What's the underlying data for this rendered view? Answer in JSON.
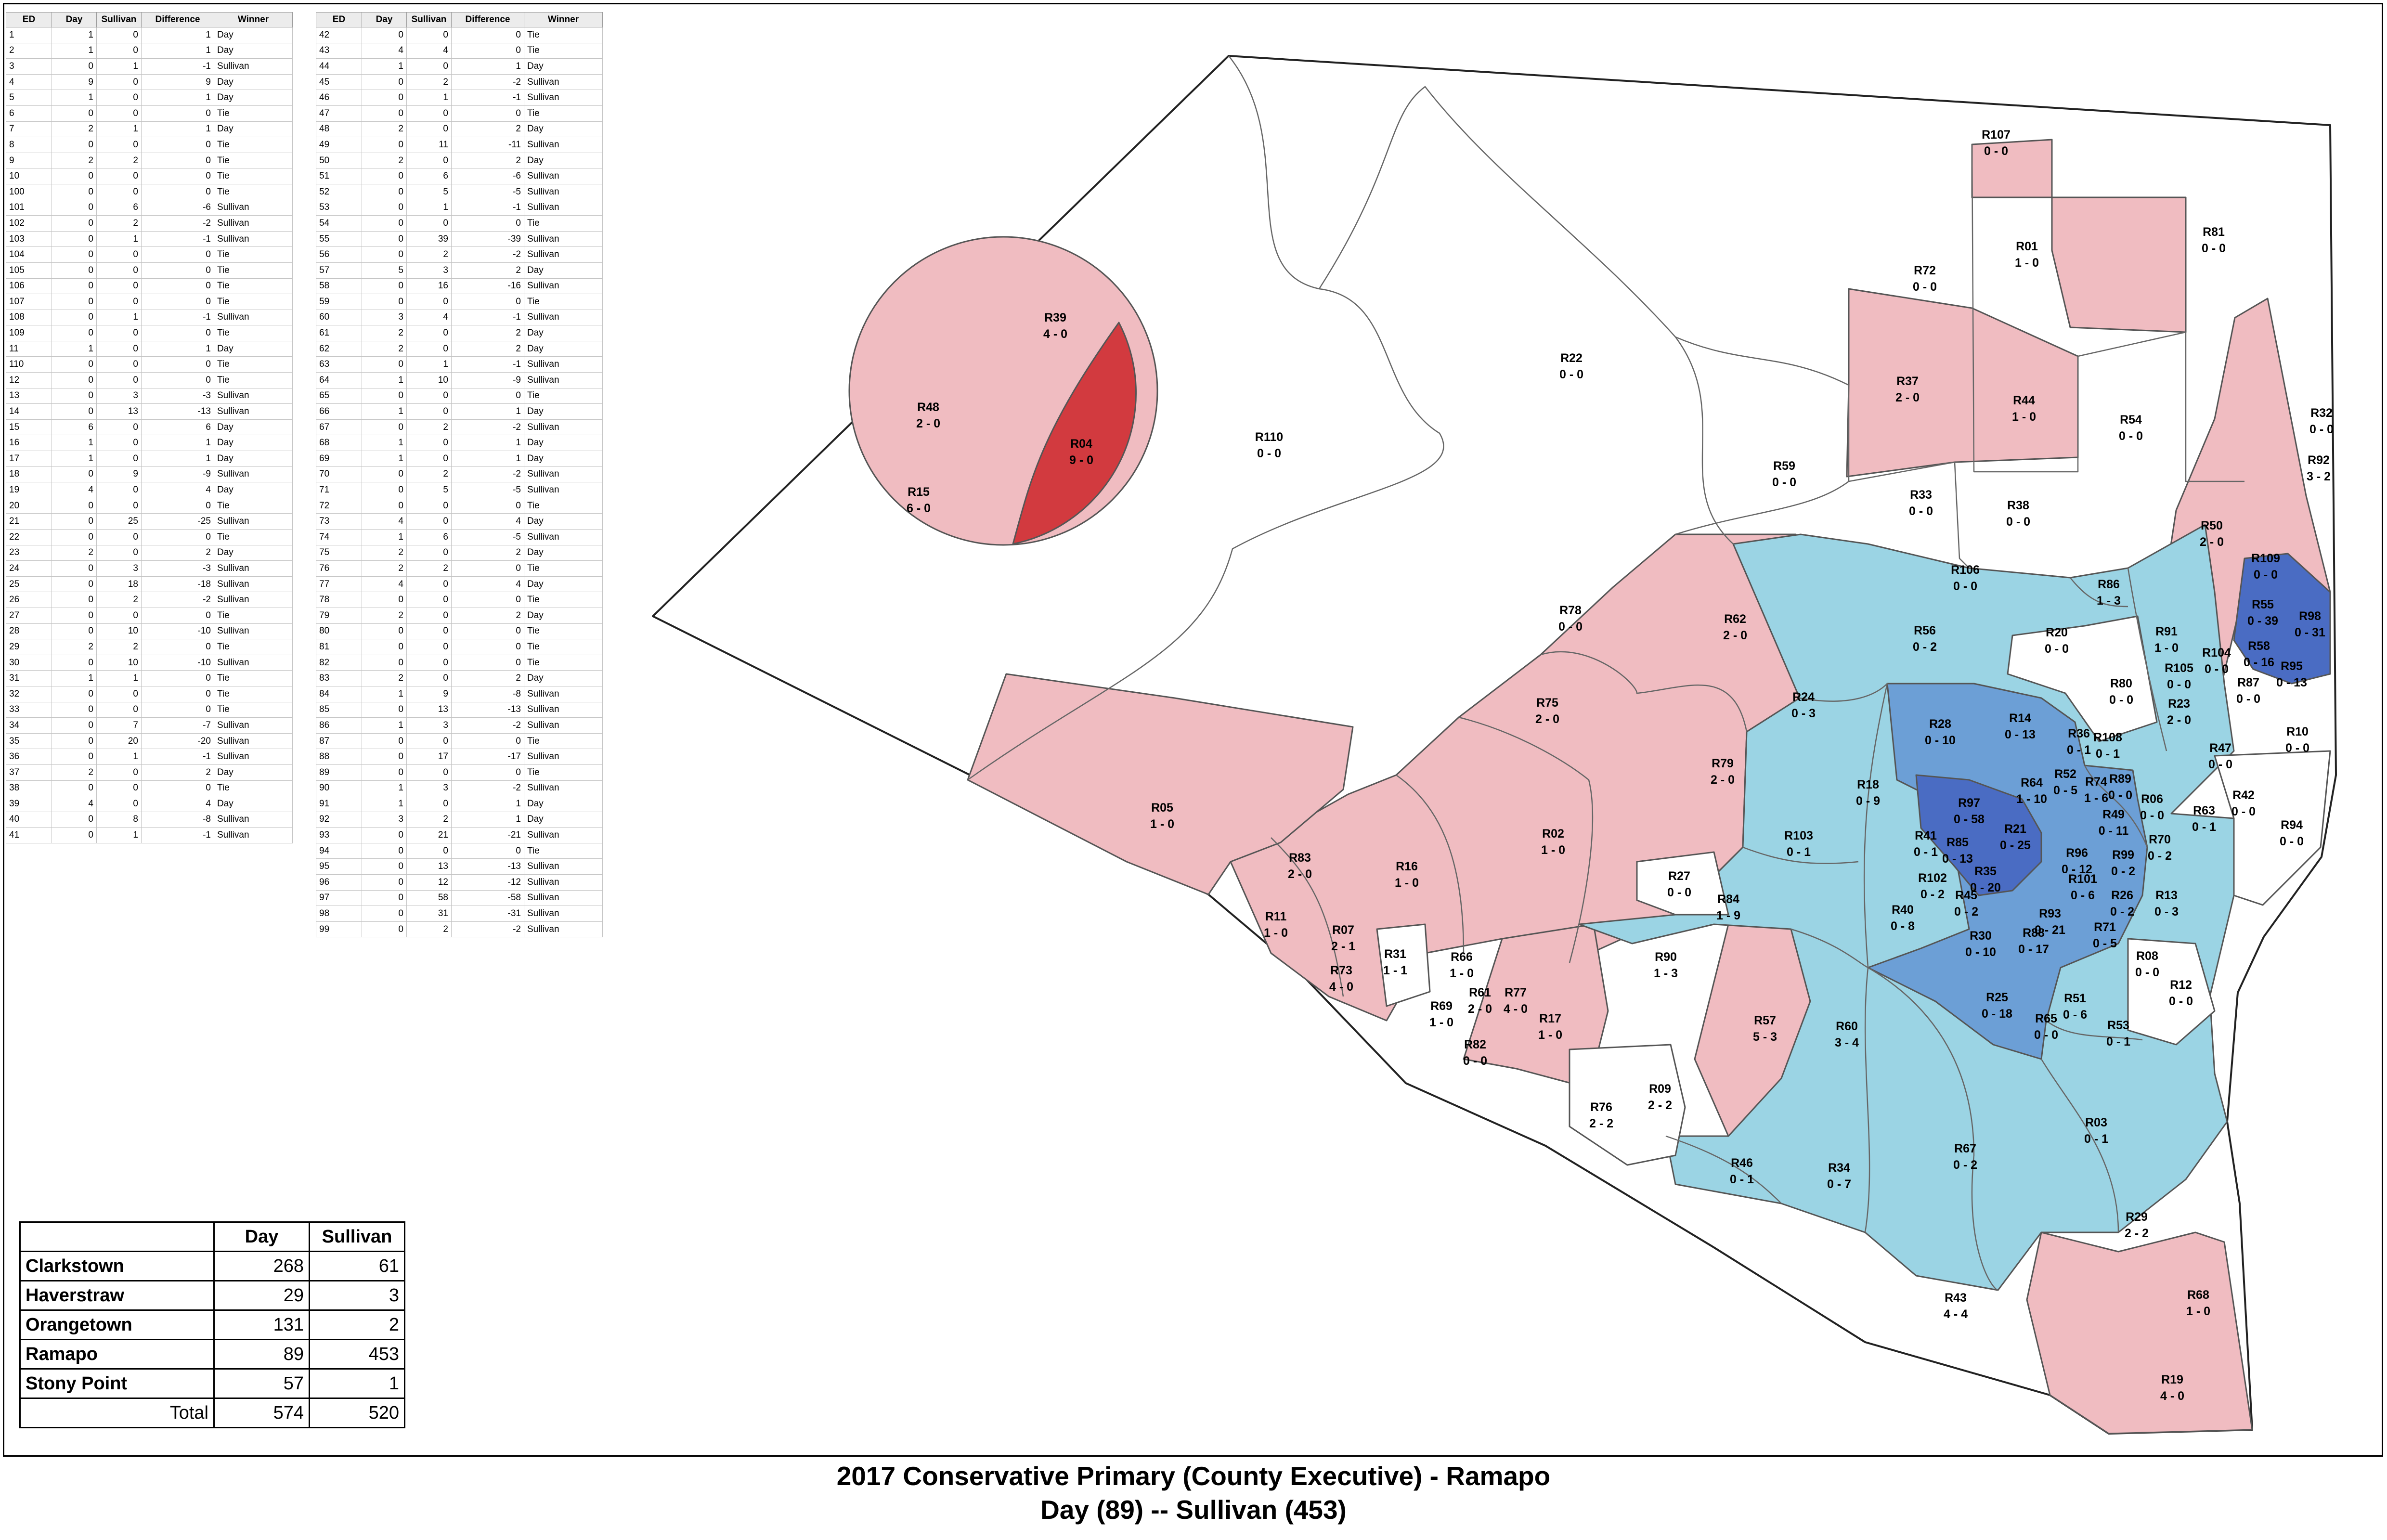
{
  "colors": {
    "tie": "#ffffff",
    "day_light": "#f0bcc1",
    "day_strong": "#d23a3f",
    "sul_light": "#9bd4e4",
    "sul_mid": "#6c9fd6",
    "sul_strong": "#4a6cc3"
  },
  "ed_columns": [
    "ED",
    "Day",
    "Sullivan",
    "Difference",
    "Winner"
  ],
  "ed_rows_left": [
    [
      "1",
      "1",
      "0",
      "1",
      "Day"
    ],
    [
      "2",
      "1",
      "0",
      "1",
      "Day"
    ],
    [
      "3",
      "0",
      "1",
      "-1",
      "Sullivan"
    ],
    [
      "4",
      "9",
      "0",
      "9",
      "Day"
    ],
    [
      "5",
      "1",
      "0",
      "1",
      "Day"
    ],
    [
      "6",
      "0",
      "0",
      "0",
      "Tie"
    ],
    [
      "7",
      "2",
      "1",
      "1",
      "Day"
    ],
    [
      "8",
      "0",
      "0",
      "0",
      "Tie"
    ],
    [
      "9",
      "2",
      "2",
      "0",
      "Tie"
    ],
    [
      "10",
      "0",
      "0",
      "0",
      "Tie"
    ],
    [
      "100",
      "0",
      "0",
      "0",
      "Tie"
    ],
    [
      "101",
      "0",
      "6",
      "-6",
      "Sullivan"
    ],
    [
      "102",
      "0",
      "2",
      "-2",
      "Sullivan"
    ],
    [
      "103",
      "0",
      "1",
      "-1",
      "Sullivan"
    ],
    [
      "104",
      "0",
      "0",
      "0",
      "Tie"
    ],
    [
      "105",
      "0",
      "0",
      "0",
      "Tie"
    ],
    [
      "106",
      "0",
      "0",
      "0",
      "Tie"
    ],
    [
      "107",
      "0",
      "0",
      "0",
      "Tie"
    ],
    [
      "108",
      "0",
      "1",
      "-1",
      "Sullivan"
    ],
    [
      "109",
      "0",
      "0",
      "0",
      "Tie"
    ],
    [
      "11",
      "1",
      "0",
      "1",
      "Day"
    ],
    [
      "110",
      "0",
      "0",
      "0",
      "Tie"
    ],
    [
      "12",
      "0",
      "0",
      "0",
      "Tie"
    ],
    [
      "13",
      "0",
      "3",
      "-3",
      "Sullivan"
    ],
    [
      "14",
      "0",
      "13",
      "-13",
      "Sullivan"
    ],
    [
      "15",
      "6",
      "0",
      "6",
      "Day"
    ],
    [
      "16",
      "1",
      "0",
      "1",
      "Day"
    ],
    [
      "17",
      "1",
      "0",
      "1",
      "Day"
    ],
    [
      "18",
      "0",
      "9",
      "-9",
      "Sullivan"
    ],
    [
      "19",
      "4",
      "0",
      "4",
      "Day"
    ],
    [
      "20",
      "0",
      "0",
      "0",
      "Tie"
    ],
    [
      "21",
      "0",
      "25",
      "-25",
      "Sullivan"
    ],
    [
      "22",
      "0",
      "0",
      "0",
      "Tie"
    ],
    [
      "23",
      "2",
      "0",
      "2",
      "Day"
    ],
    [
      "24",
      "0",
      "3",
      "-3",
      "Sullivan"
    ],
    [
      "25",
      "0",
      "18",
      "-18",
      "Sullivan"
    ],
    [
      "26",
      "0",
      "2",
      "-2",
      "Sullivan"
    ],
    [
      "27",
      "0",
      "0",
      "0",
      "Tie"
    ],
    [
      "28",
      "0",
      "10",
      "-10",
      "Sullivan"
    ],
    [
      "29",
      "2",
      "2",
      "0",
      "Tie"
    ],
    [
      "30",
      "0",
      "10",
      "-10",
      "Sullivan"
    ],
    [
      "31",
      "1",
      "1",
      "0",
      "Tie"
    ],
    [
      "32",
      "0",
      "0",
      "0",
      "Tie"
    ],
    [
      "33",
      "0",
      "0",
      "0",
      "Tie"
    ],
    [
      "34",
      "0",
      "7",
      "-7",
      "Sullivan"
    ],
    [
      "35",
      "0",
      "20",
      "-20",
      "Sullivan"
    ],
    [
      "36",
      "0",
      "1",
      "-1",
      "Sullivan"
    ],
    [
      "37",
      "2",
      "0",
      "2",
      "Day"
    ],
    [
      "38",
      "0",
      "0",
      "0",
      "Tie"
    ],
    [
      "39",
      "4",
      "0",
      "4",
      "Day"
    ],
    [
      "40",
      "0",
      "8",
      "-8",
      "Sullivan"
    ],
    [
      "41",
      "0",
      "1",
      "-1",
      "Sullivan"
    ]
  ],
  "ed_rows_right": [
    [
      "42",
      "0",
      "0",
      "0",
      "Tie"
    ],
    [
      "43",
      "4",
      "4",
      "0",
      "Tie"
    ],
    [
      "44",
      "1",
      "0",
      "1",
      "Day"
    ],
    [
      "45",
      "0",
      "2",
      "-2",
      "Sullivan"
    ],
    [
      "46",
      "0",
      "1",
      "-1",
      "Sullivan"
    ],
    [
      "47",
      "0",
      "0",
      "0",
      "Tie"
    ],
    [
      "48",
      "2",
      "0",
      "2",
      "Day"
    ],
    [
      "49",
      "0",
      "11",
      "-11",
      "Sullivan"
    ],
    [
      "50",
      "2",
      "0",
      "2",
      "Day"
    ],
    [
      "51",
      "0",
      "6",
      "-6",
      "Sullivan"
    ],
    [
      "52",
      "0",
      "5",
      "-5",
      "Sullivan"
    ],
    [
      "53",
      "0",
      "1",
      "-1",
      "Sullivan"
    ],
    [
      "54",
      "0",
      "0",
      "0",
      "Tie"
    ],
    [
      "55",
      "0",
      "39",
      "-39",
      "Sullivan"
    ],
    [
      "56",
      "0",
      "2",
      "-2",
      "Sullivan"
    ],
    [
      "57",
      "5",
      "3",
      "2",
      "Day"
    ],
    [
      "58",
      "0",
      "16",
      "-16",
      "Sullivan"
    ],
    [
      "59",
      "0",
      "0",
      "0",
      "Tie"
    ],
    [
      "60",
      "3",
      "4",
      "-1",
      "Sullivan"
    ],
    [
      "61",
      "2",
      "0",
      "2",
      "Day"
    ],
    [
      "62",
      "2",
      "0",
      "2",
      "Day"
    ],
    [
      "63",
      "0",
      "1",
      "-1",
      "Sullivan"
    ],
    [
      "64",
      "1",
      "10",
      "-9",
      "Sullivan"
    ],
    [
      "65",
      "0",
      "0",
      "0",
      "Tie"
    ],
    [
      "66",
      "1",
      "0",
      "1",
      "Day"
    ],
    [
      "67",
      "0",
      "2",
      "-2",
      "Sullivan"
    ],
    [
      "68",
      "1",
      "0",
      "1",
      "Day"
    ],
    [
      "69",
      "1",
      "0",
      "1",
      "Day"
    ],
    [
      "70",
      "0",
      "2",
      "-2",
      "Sullivan"
    ],
    [
      "71",
      "0",
      "5",
      "-5",
      "Sullivan"
    ],
    [
      "72",
      "0",
      "0",
      "0",
      "Tie"
    ],
    [
      "73",
      "4",
      "0",
      "4",
      "Day"
    ],
    [
      "74",
      "1",
      "6",
      "-5",
      "Sullivan"
    ],
    [
      "75",
      "2",
      "0",
      "2",
      "Day"
    ],
    [
      "76",
      "2",
      "2",
      "0",
      "Tie"
    ],
    [
      "77",
      "4",
      "0",
      "4",
      "Day"
    ],
    [
      "78",
      "0",
      "0",
      "0",
      "Tie"
    ],
    [
      "79",
      "2",
      "0",
      "2",
      "Day"
    ],
    [
      "80",
      "0",
      "0",
      "0",
      "Tie"
    ],
    [
      "81",
      "0",
      "0",
      "0",
      "Tie"
    ],
    [
      "82",
      "0",
      "0",
      "0",
      "Tie"
    ],
    [
      "83",
      "2",
      "0",
      "2",
      "Day"
    ],
    [
      "84",
      "1",
      "9",
      "-8",
      "Sullivan"
    ],
    [
      "85",
      "0",
      "13",
      "-13",
      "Sullivan"
    ],
    [
      "86",
      "1",
      "3",
      "-2",
      "Sullivan"
    ],
    [
      "87",
      "0",
      "0",
      "0",
      "Tie"
    ],
    [
      "88",
      "0",
      "17",
      "-17",
      "Sullivan"
    ],
    [
      "89",
      "0",
      "0",
      "0",
      "Tie"
    ],
    [
      "90",
      "1",
      "3",
      "-2",
      "Sullivan"
    ],
    [
      "91",
      "1",
      "0",
      "1",
      "Day"
    ],
    [
      "92",
      "3",
      "2",
      "1",
      "Day"
    ],
    [
      "93",
      "0",
      "21",
      "-21",
      "Sullivan"
    ],
    [
      "94",
      "0",
      "0",
      "0",
      "Tie"
    ],
    [
      "95",
      "0",
      "13",
      "-13",
      "Sullivan"
    ],
    [
      "96",
      "0",
      "12",
      "-12",
      "Sullivan"
    ],
    [
      "97",
      "0",
      "58",
      "-58",
      "Sullivan"
    ],
    [
      "98",
      "0",
      "31",
      "-31",
      "Sullivan"
    ],
    [
      "99",
      "0",
      "2",
      "-2",
      "Sullivan"
    ]
  ],
  "totals": {
    "headers": [
      "",
      "Day",
      "Sullivan"
    ],
    "rows": [
      [
        "Clarkstown",
        "268",
        "61"
      ],
      [
        "Haverstraw",
        "29",
        "3"
      ],
      [
        "Orangetown",
        "131",
        "2"
      ],
      [
        "Ramapo",
        "89",
        "453"
      ],
      [
        "Stony Point",
        "57",
        "1"
      ]
    ],
    "total": [
      "Total",
      "574",
      "520"
    ]
  },
  "caption": {
    "line1": "2017 Conservative Primary (County Executive) - Ramapo",
    "line2": "Day (89) -- Sullivan (453)"
  },
  "map_labels": [
    [
      "R107",
      "0 - 0",
      4146,
      288,
      "t"
    ],
    [
      "R01",
      "1 - 0",
      4210,
      520,
      "d"
    ],
    [
      "R81",
      "0 - 0",
      4598,
      490,
      "t"
    ],
    [
      "R72",
      "0 - 0",
      3998,
      570,
      "t"
    ],
    [
      "R22",
      "0 - 0",
      3264,
      752,
      "t"
    ],
    [
      "R37",
      "2 - 0",
      3962,
      800,
      "d"
    ],
    [
      "R44",
      "1 - 0",
      4204,
      840,
      "d"
    ],
    [
      "R54",
      "0 - 0",
      4426,
      880,
      "t"
    ],
    [
      "R32",
      "0 - 0",
      4822,
      866,
      "t"
    ],
    [
      "R39",
      "4 - 0",
      2192,
      668,
      "d"
    ],
    [
      "R48",
      "2 - 0",
      1928,
      854,
      "d"
    ],
    [
      "R04",
      "9 - 0",
      2246,
      930,
      "D"
    ],
    [
      "R110",
      "0 - 0",
      2636,
      916,
      "t"
    ],
    [
      "R15",
      "6 - 0",
      1908,
      1030,
      "d"
    ],
    [
      "R59",
      "0 - 0",
      3706,
      976,
      "t"
    ],
    [
      "R92",
      "3 - 2",
      4816,
      964,
      "d"
    ],
    [
      "R33",
      "0 - 0",
      3990,
      1036,
      "t"
    ],
    [
      "R38",
      "0 - 0",
      4192,
      1058,
      "t"
    ],
    [
      "R50",
      "2 - 0",
      4594,
      1100,
      "d"
    ],
    [
      "R106",
      "0 - 0",
      4082,
      1192,
      "s"
    ],
    [
      "R86",
      "1 - 3",
      4380,
      1222,
      "s"
    ],
    [
      "R109",
      "0 - 0",
      4706,
      1168,
      "S"
    ],
    [
      "R55",
      "0 - 39",
      4700,
      1264,
      "S"
    ],
    [
      "R98",
      "0 - 31",
      4798,
      1288,
      "S"
    ],
    [
      "R78",
      "0 - 0",
      3262,
      1276,
      "t"
    ],
    [
      "R62",
      "2 - 0",
      3604,
      1294,
      "d"
    ],
    [
      "R56",
      "0 - 2",
      3998,
      1318,
      "s"
    ],
    [
      "R20",
      "0 - 0",
      4272,
      1322,
      "t"
    ],
    [
      "R91",
      "1 - 0",
      4500,
      1320,
      "d"
    ],
    [
      "R58",
      "0 - 16",
      4692,
      1350,
      "S"
    ],
    [
      "R95",
      "0 - 13",
      4760,
      1392,
      "S"
    ],
    [
      "R104",
      "0 - 0",
      4604,
      1364,
      "t"
    ],
    [
      "R105",
      "0 - 0",
      4526,
      1396,
      "t"
    ],
    [
      "R87",
      "0 - 0",
      4670,
      1426,
      "t"
    ],
    [
      "R80",
      "0 - 0",
      4406,
      1428,
      "t"
    ],
    [
      "R23",
      "2 - 0",
      4526,
      1470,
      "d"
    ],
    [
      "R24",
      "0 - 3",
      3746,
      1456,
      "s"
    ],
    [
      "R75",
      "2 - 0",
      3214,
      1468,
      "d"
    ],
    [
      "R28",
      "0 - 10",
      4030,
      1512,
      "m"
    ],
    [
      "R14",
      "0 - 13",
      4196,
      1500,
      "m"
    ],
    [
      "R36",
      "0 - 1",
      4318,
      1532,
      "s"
    ],
    [
      "R108",
      "0 - 1",
      4378,
      1540,
      "s"
    ],
    [
      "R47",
      "0 - 0",
      4612,
      1562,
      "t"
    ],
    [
      "R10",
      "0 - 0",
      4772,
      1528,
      "t"
    ],
    [
      "R79",
      "2 - 0",
      3578,
      1594,
      "d"
    ],
    [
      "R05",
      "1 - 0",
      2414,
      1686,
      "d"
    ],
    [
      "R18",
      "0 - 9",
      3880,
      1638,
      "s"
    ],
    [
      "R52",
      "0 - 5",
      4290,
      1616,
      "s"
    ],
    [
      "R64",
      "1 - 10",
      4220,
      1634,
      "m"
    ],
    [
      "R74",
      "1 - 6",
      4354,
      1632,
      "m"
    ],
    [
      "R89",
      "0 - 0",
      4404,
      1626,
      "t"
    ],
    [
      "R06",
      "0 - 0",
      4470,
      1668,
      "t"
    ],
    [
      "R42",
      "0 - 0",
      4660,
      1660,
      "t"
    ],
    [
      "R63",
      "0 - 1",
      4578,
      1692,
      "s"
    ],
    [
      "R97",
      "0 - 58",
      4090,
      1676,
      "S"
    ],
    [
      "R49",
      "0 - 11",
      4390,
      1700,
      "m"
    ],
    [
      "R94",
      "0 - 0",
      4760,
      1722,
      "t"
    ],
    [
      "R103",
      "0 - 1",
      3736,
      1744,
      "s"
    ],
    [
      "R02",
      "1 - 0",
      3226,
      1740,
      "d"
    ],
    [
      "R41",
      "0 - 1",
      4000,
      1744,
      "s"
    ],
    [
      "R21",
      "0 - 25",
      4186,
      1730,
      "S"
    ],
    [
      "R85",
      "0 - 13",
      4066,
      1758,
      "S"
    ],
    [
      "R70",
      "0 - 2",
      4486,
      1752,
      "s"
    ],
    [
      "R96",
      "0 - 12",
      4314,
      1780,
      "m"
    ],
    [
      "R99",
      "0 - 2",
      4410,
      1784,
      "s"
    ],
    [
      "R83",
      "2 - 0",
      2700,
      1790,
      "d"
    ],
    [
      "R16",
      "1 - 0",
      2922,
      1808,
      "d"
    ],
    [
      "R27",
      "0 - 0",
      3488,
      1828,
      "t"
    ],
    [
      "R35",
      "0 - 20",
      4124,
      1818,
      "S"
    ],
    [
      "R101",
      "0 - 6",
      4326,
      1834,
      "m"
    ],
    [
      "R102",
      "0 - 2",
      4014,
      1832,
      "s"
    ],
    [
      "R84",
      "1 - 9",
      3590,
      1876,
      "s"
    ],
    [
      "R13",
      "0 - 3",
      4500,
      1868,
      "s"
    ],
    [
      "R26",
      "0 - 2",
      4408,
      1868,
      "s"
    ],
    [
      "R45",
      "0 - 2",
      4084,
      1868,
      "s"
    ],
    [
      "R40",
      "0 - 8",
      3952,
      1898,
      "s"
    ],
    [
      "R11",
      "1 - 0",
      2650,
      1912,
      "d"
    ],
    [
      "R93",
      "0 - 21",
      4258,
      1906,
      "m"
    ],
    [
      "R07",
      "2 - 1",
      2790,
      1940,
      "d"
    ],
    [
      "R88",
      "0 - 17",
      4224,
      1946,
      "m"
    ],
    [
      "R71",
      "0 - 5",
      4372,
      1934,
      "s"
    ],
    [
      "R30",
      "0 - 10",
      4114,
      1952,
      "m"
    ],
    [
      "R08",
      "0 - 0",
      4460,
      1994,
      "t"
    ],
    [
      "R31",
      "1 - 1",
      2898,
      1990,
      "t"
    ],
    [
      "R66",
      "1 - 0",
      3036,
      1996,
      "d"
    ],
    [
      "R90",
      "1 - 3",
      3460,
      1996,
      "s"
    ],
    [
      "R73",
      "4 - 0",
      2786,
      2024,
      "d"
    ],
    [
      "R12",
      "0 - 0",
      4530,
      2054,
      "t"
    ],
    [
      "R61",
      "2 - 0",
      3074,
      2070,
      "d"
    ],
    [
      "R77",
      "4 - 0",
      3148,
      2070,
      "d"
    ],
    [
      "R69",
      "1 - 0",
      2994,
      2098,
      "d"
    ],
    [
      "R25",
      "0 - 18",
      4148,
      2080,
      "m"
    ],
    [
      "R51",
      "0 - 6",
      4310,
      2082,
      "s"
    ],
    [
      "R17",
      "1 - 0",
      3220,
      2124,
      "d"
    ],
    [
      "R57",
      "5 - 3",
      3666,
      2128,
      "d"
    ],
    [
      "R60",
      "3 - 4",
      3836,
      2140,
      "s"
    ],
    [
      "R65",
      "0 - 0",
      4250,
      2124,
      "t"
    ],
    [
      "R53",
      "0 - 1",
      4400,
      2138,
      "s"
    ],
    [
      "R82",
      "0 - 0",
      3064,
      2178,
      "t"
    ],
    [
      "R09",
      "2 - 2",
      3448,
      2270,
      "t"
    ],
    [
      "R76",
      "2 - 2",
      3326,
      2308,
      "t"
    ],
    [
      "R03",
      "0 - 1",
      4354,
      2340,
      "s"
    ],
    [
      "R67",
      "0 - 2",
      4082,
      2394,
      "s"
    ],
    [
      "R46",
      "0 - 1",
      3618,
      2424,
      "s"
    ],
    [
      "R34",
      "0 - 7",
      3820,
      2434,
      "s"
    ],
    [
      "R29",
      "2 - 2",
      4438,
      2536,
      "t"
    ],
    [
      "R68",
      "1 - 0",
      4566,
      2698,
      "d"
    ],
    [
      "R43",
      "4 - 4",
      4062,
      2704,
      "t"
    ],
    [
      "R19",
      "4 - 0",
      4512,
      2874,
      "d"
    ]
  ]
}
